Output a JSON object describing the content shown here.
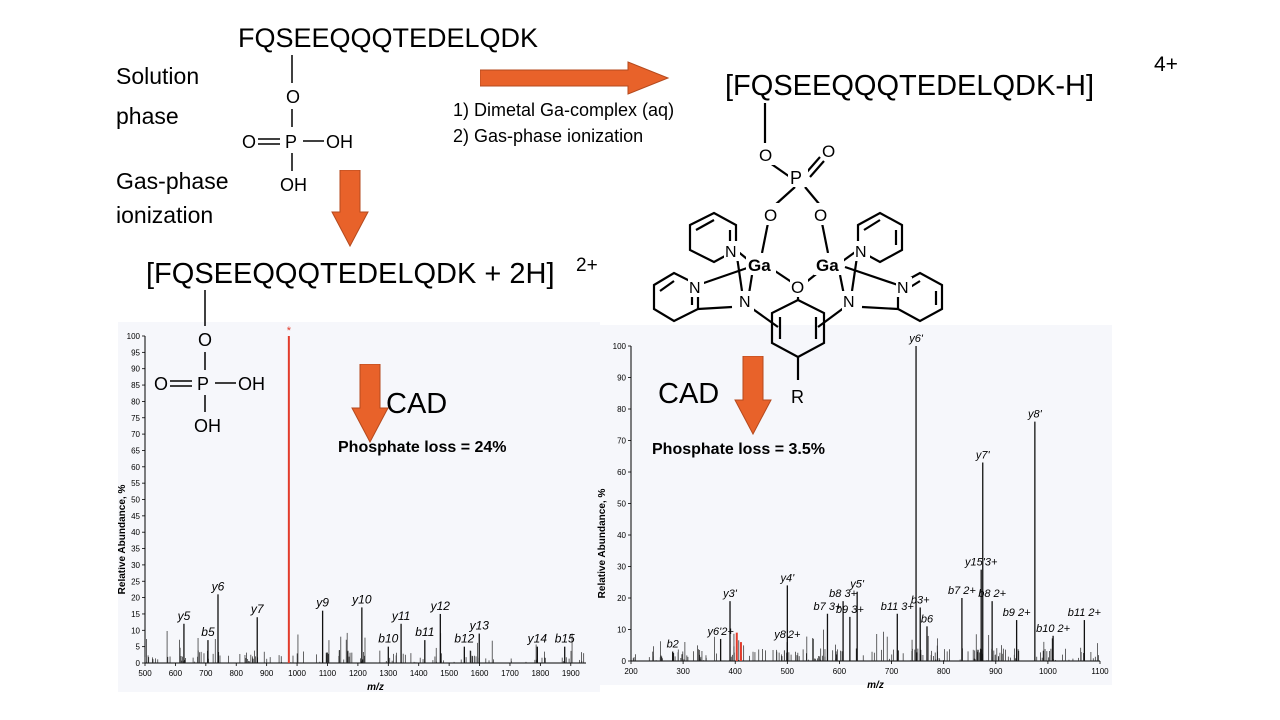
{
  "top": {
    "peptide_sequence": "FQSEEQQQTEDELQDK",
    "solution_phase_label": [
      "Solution",
      "phase"
    ],
    "gas_phase_label": [
      "Gas-phase",
      "ionization"
    ],
    "step1": "1) Dimetal Ga-complex (aq)",
    "step2": "2) Gas-phase ionization",
    "left_ion": "[FQSEEQQQTEDELQDK + 2H]",
    "left_charge": "2+",
    "right_ion": "[FQSEEQQQTEDELQDK-H]",
    "right_charge": "4+",
    "cad_left": "CAD",
    "cad_right": "CAD",
    "phosphate_left": "Phosphate loss = 24%",
    "phosphate_right": "Phosphate loss = 3.5%"
  },
  "phosphate_group": {
    "O": "O",
    "P": "P",
    "OH": "OH"
  },
  "complex": {
    "metal": "Ga",
    "nitrogen": "N",
    "oxygen": "O",
    "phosphorus": "P",
    "R": "R"
  },
  "colors": {
    "arrow": "#e8622a",
    "spectrum_line": "#111111",
    "highlight": "#e23b2b",
    "panel_bg": "#f6f7fb"
  },
  "chart_data": [
    {
      "type": "bar",
      "ylabel": "Relative Abundance, %",
      "xlabel": "m/z",
      "xlim": [
        500,
        1950
      ],
      "ylim": [
        0,
        100
      ],
      "x_ticks": [
        "500",
        "600",
        "700",
        "800",
        "900",
        "1000",
        "1100",
        "1200",
        "1300",
        "1400",
        "1500",
        "1600",
        "1700",
        "1800",
        "1900"
      ],
      "y_ticks": [
        "0",
        "5",
        "10",
        "15",
        "20",
        "25",
        "30",
        "35",
        "40",
        "45",
        "50",
        "55",
        "60",
        "65",
        "70",
        "75",
        "80",
        "85",
        "90",
        "95",
        "100"
      ],
      "highlight_peak": {
        "x": 973,
        "value": 100,
        "marker": "*"
      },
      "peaks": [
        {
          "x": 628,
          "value": 12,
          "label": "y5"
        },
        {
          "x": 707,
          "value": 7,
          "label": "b5"
        },
        {
          "x": 740,
          "value": 21,
          "label": "y6"
        },
        {
          "x": 869,
          "value": 14,
          "label": "y7"
        },
        {
          "x": 1084,
          "value": 16,
          "label": "y9"
        },
        {
          "x": 1213,
          "value": 17,
          "label": "y10"
        },
        {
          "x": 1300,
          "value": 5,
          "label": "b10"
        },
        {
          "x": 1342,
          "value": 12,
          "label": "y11"
        },
        {
          "x": 1420,
          "value": 7,
          "label": "b11"
        },
        {
          "x": 1471,
          "value": 15,
          "label": "y12"
        },
        {
          "x": 1550,
          "value": 5,
          "label": "b12"
        },
        {
          "x": 1599,
          "value": 9,
          "label": "y13"
        },
        {
          "x": 1790,
          "value": 5,
          "label": "y14"
        },
        {
          "x": 1880,
          "value": 5,
          "label": "b15"
        }
      ],
      "labels": [
        {
          "base": "y",
          "sub": "5",
          "sup": "'"
        },
        {
          "base": "b",
          "sub": "5",
          "sup": ""
        },
        {
          "base": "y",
          "sub": "6",
          "sup": "'"
        },
        {
          "base": "y",
          "sub": "7",
          "sup": "'"
        },
        {
          "base": "y",
          "sub": "9",
          "sup": "'"
        },
        {
          "base": "y",
          "sub": "10",
          "sup": "'"
        },
        {
          "base": "b",
          "sub": "10",
          "sup": ""
        },
        {
          "base": "y",
          "sub": "11",
          "sup": "'"
        },
        {
          "base": "b",
          "sub": "11",
          "sup": ""
        },
        {
          "base": "y",
          "sub": "12",
          "sup": "'"
        },
        {
          "base": "b",
          "sub": "12",
          "sup": ""
        },
        {
          "base": "y",
          "sub": "13",
          "sup": "'"
        },
        {
          "base": "y",
          "sub": "14",
          "sup": "'"
        },
        {
          "base": "b",
          "sub": "15",
          "sup": ""
        }
      ]
    },
    {
      "type": "bar",
      "ylabel": "Relative Abundance, %",
      "xlabel": "m/z",
      "xlim": [
        200,
        1100
      ],
      "ylim": [
        0,
        100
      ],
      "x_ticks": [
        "200",
        "300",
        "400",
        "500",
        "600",
        "700",
        "800",
        "900",
        "1000",
        "1100"
      ],
      "y_ticks": [
        "0",
        "10",
        "20",
        "30",
        "40",
        "50",
        "60",
        "70",
        "80",
        "90",
        "100"
      ],
      "highlight_peaks": [
        {
          "x": 403,
          "value": 9
        },
        {
          "x": 411,
          "value": 6
        }
      ],
      "peaks": [
        {
          "x": 280,
          "value": 3,
          "label": "b2"
        },
        {
          "x": 372,
          "value": 7,
          "label": "y6'2+"
        },
        {
          "x": 390,
          "value": 19,
          "label": "y3'"
        },
        {
          "x": 500,
          "value": 24,
          "label": "y4'"
        },
        {
          "x": 500,
          "value": 6,
          "label": "y8'2+"
        },
        {
          "x": 577,
          "value": 15,
          "label": "b7 3+"
        },
        {
          "x": 607,
          "value": 19,
          "label": "b8 3+"
        },
        {
          "x": 620,
          "value": 14,
          "label": "b9 3+"
        },
        {
          "x": 634,
          "value": 22,
          "label": "y5'"
        },
        {
          "x": 711,
          "value": 15,
          "label": "b11 3+"
        },
        {
          "x": 747,
          "value": 100,
          "label": "y6'"
        },
        {
          "x": 755,
          "value": 17,
          "label": "b3+"
        },
        {
          "x": 768,
          "value": 11,
          "label": "b6"
        },
        {
          "x": 835,
          "value": 20,
          "label": "b7 2+"
        },
        {
          "x": 872,
          "value": 29,
          "label": "y15'3+"
        },
        {
          "x": 875,
          "value": 63,
          "label": "y7'"
        },
        {
          "x": 893,
          "value": 19,
          "label": "b8 2+"
        },
        {
          "x": 940,
          "value": 13,
          "label": "b9 2+"
        },
        {
          "x": 975,
          "value": 76,
          "label": "y8'"
        },
        {
          "x": 1010,
          "value": 8,
          "label": "b10 2+"
        },
        {
          "x": 1070,
          "value": 13,
          "label": "b11 2+"
        }
      ]
    }
  ]
}
